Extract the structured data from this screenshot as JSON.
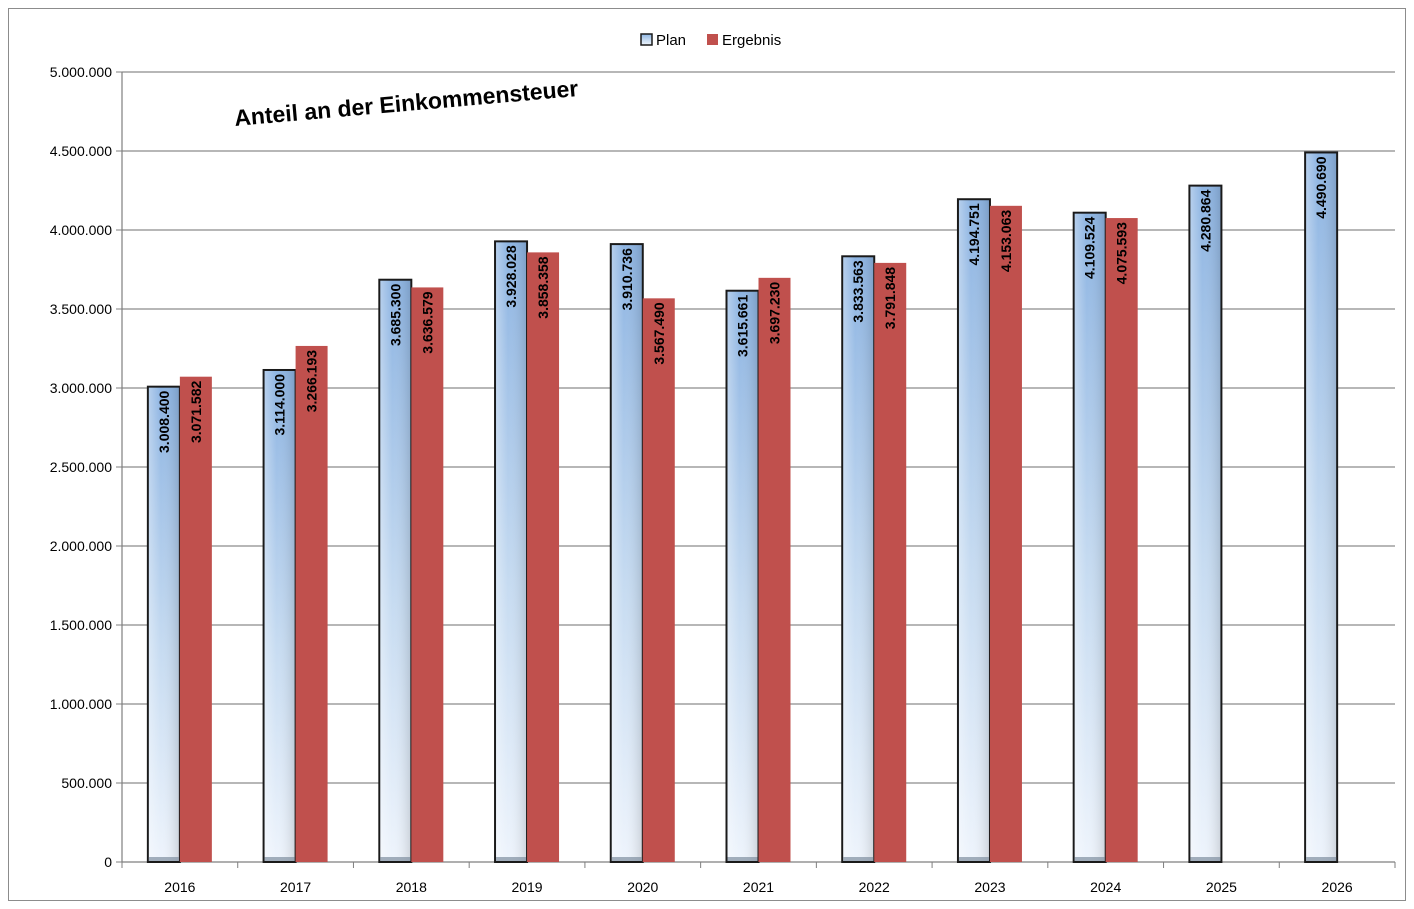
{
  "chart_data": {
    "type": "bar",
    "title": "Anteil an der Einkommensteuer",
    "categories": [
      "2016",
      "2017",
      "2018",
      "2019",
      "2020",
      "2021",
      "2022",
      "2023",
      "2024",
      "2025",
      "2026"
    ],
    "series": [
      {
        "name": "Plan",
        "values": [
          3008400,
          3114000,
          3685300,
          3928028,
          3910736,
          3615661,
          3833563,
          4194751,
          4109524,
          4280864,
          4490690
        ],
        "labels": [
          "3.008.400",
          "3.114.000",
          "3.685.300",
          "3.928.028",
          "3.910.736",
          "3.615.661",
          "3.833.563",
          "4.194.751",
          "4.109.524",
          "4.280.864",
          "4.490.690"
        ],
        "color": "#9dc3e6"
      },
      {
        "name": "Ergebnis",
        "values": [
          3071582,
          3266193,
          3636579,
          3858358,
          3567490,
          3697230,
          3791848,
          4153063,
          4075593,
          null,
          null
        ],
        "labels": [
          "3.071.582",
          "3.266.193",
          "3.636.579",
          "3.858.358",
          "3.567.490",
          "3.697.230",
          "3.791.848",
          "4.153.063",
          "4.075.593",
          "",
          ""
        ],
        "color": "#c0504d"
      }
    ],
    "ylim": [
      0,
      5000000
    ],
    "yticks": [
      0,
      500000,
      1000000,
      1500000,
      2000000,
      2500000,
      3000000,
      3500000,
      4000000,
      4500000,
      5000000
    ],
    "ytick_labels": [
      "0",
      "500.000",
      "1.000.000",
      "1.500.000",
      "2.000.000",
      "2.500.000",
      "3.000.000",
      "3.500.000",
      "4.000.000",
      "4.500.000",
      "5.000.000"
    ],
    "grid": true,
    "legend_position": "top-center"
  }
}
